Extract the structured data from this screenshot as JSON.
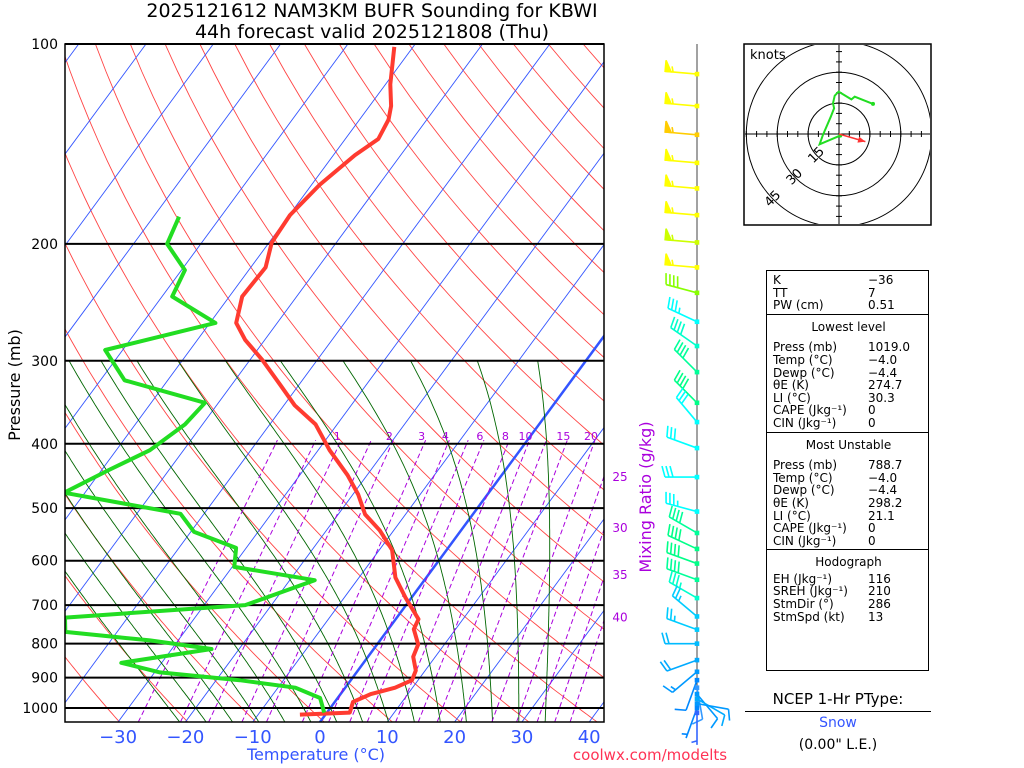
{
  "title": {
    "line1": "2025121612 NAM3KM BUFR Sounding for KBWI",
    "line2": "44h forecast valid 2025121808 (Thu)"
  },
  "colors": {
    "temperature": "#ff3b30",
    "dewpoint": "#22dd22",
    "isotherm": "#3355ff",
    "dry_adiabat": "#ff4444",
    "moist_adiabat": "#006600",
    "mixing_ratio": "#aa00dd",
    "axis_text": "#3355ff"
  },
  "chart_data": {
    "type": "line",
    "subtype": "skew-t log-p",
    "xlabel": "Temperature (°C)",
    "ylabel": "Pressure (mb)",
    "secondary_label": "Mixing Ratio (g/kg)",
    "ylim": [
      1050,
      100
    ],
    "x_ticks": [
      -30,
      -20,
      -10,
      0,
      10,
      20,
      30,
      40
    ],
    "y_ticks": [
      100,
      200,
      300,
      400,
      500,
      600,
      700,
      800,
      900,
      1000
    ],
    "mixing_ratio_labels_top": [
      1,
      2,
      3,
      4,
      6,
      8,
      10,
      15,
      20
    ],
    "mixing_ratio_labels_right": [
      25,
      30,
      35,
      40
    ],
    "series": [
      {
        "name": "Temperature",
        "points": [
          [
            1023,
            -3.8
          ],
          [
            1016,
            3.4
          ],
          [
            979,
            2.7
          ],
          [
            953,
            4.5
          ],
          [
            932,
            7.4
          ],
          [
            908,
            9.1
          ],
          [
            878,
            8.6
          ],
          [
            837,
            6.7
          ],
          [
            802,
            6.1
          ],
          [
            761,
            3.8
          ],
          [
            735,
            3.4
          ],
          [
            682,
            -0.9
          ],
          [
            636,
            -4.6
          ],
          [
            578,
            -8.1
          ],
          [
            540,
            -12.1
          ],
          [
            511,
            -16.0
          ],
          [
            477,
            -19.2
          ],
          [
            446,
            -22.9
          ],
          [
            409,
            -28.3
          ],
          [
            374,
            -33.2
          ],
          [
            350,
            -38.4
          ],
          [
            326,
            -42.8
          ],
          [
            299,
            -48.2
          ],
          [
            279,
            -52.9
          ],
          [
            263,
            -56.1
          ],
          [
            240,
            -58.1
          ],
          [
            217,
            -57.8
          ],
          [
            199,
            -59.6
          ],
          [
            181,
            -59.9
          ],
          [
            163,
            -58.8
          ],
          [
            147,
            -56.8
          ],
          [
            139,
            -55.1
          ],
          [
            130,
            -55.7
          ],
          [
            124,
            -56.8
          ],
          [
            115,
            -59.3
          ],
          [
            101,
            -62.8
          ]
        ]
      },
      {
        "name": "Dewpoint",
        "points": [
          [
            1016,
            -0.4
          ],
          [
            966,
            -2.6
          ],
          [
            932,
            -7.4
          ],
          [
            908,
            -16.5
          ],
          [
            884,
            -29.2
          ],
          [
            855,
            -36.0
          ],
          [
            815,
            -24.1
          ],
          [
            791,
            -34.2
          ],
          [
            768,
            -47.7
          ],
          [
            731,
            -49.3
          ],
          [
            700,
            -23.9
          ],
          [
            642,
            -16.3
          ],
          [
            613,
            -29.7
          ],
          [
            574,
            -31.5
          ],
          [
            543,
            -39.5
          ],
          [
            510,
            -43.5
          ],
          [
            474,
            -63.1
          ],
          [
            438,
            -58.9
          ],
          [
            409,
            -55.0
          ],
          [
            374,
            -52.6
          ],
          [
            347,
            -52.0
          ],
          [
            321,
            -66.4
          ],
          [
            289,
            -72.6
          ],
          [
            263,
            -59.2
          ],
          [
            240,
            -68.5
          ],
          [
            219,
            -69.5
          ],
          [
            200,
            -75.0
          ],
          [
            182,
            -76.2
          ]
        ]
      }
    ],
    "wind_barbs": [
      [
        111,
        275,
        55,
        "#ffff00"
      ],
      [
        124,
        275,
        55,
        "#ffff00"
      ],
      [
        137,
        275,
        55,
        "#ffcc00"
      ],
      [
        151,
        275,
        55,
        "#ffff00"
      ],
      [
        165,
        275,
        55,
        "#ffff00"
      ],
      [
        181,
        275,
        55,
        "#ffff00"
      ],
      [
        199,
        275,
        55,
        "#ccff00"
      ],
      [
        217,
        275,
        55,
        "#ffff00"
      ],
      [
        237,
        285,
        40,
        "#88ff00"
      ],
      [
        262,
        295,
        35,
        "#00ffff"
      ],
      [
        285,
        305,
        40,
        "#00ffcc"
      ],
      [
        312,
        315,
        40,
        "#00ff99"
      ],
      [
        347,
        315,
        40,
        "#00ff88"
      ],
      [
        371,
        320,
        30,
        "#00ffff"
      ],
      [
        406,
        290,
        30,
        "#00ffff"
      ],
      [
        449,
        270,
        30,
        "#00ffff"
      ],
      [
        506,
        285,
        35,
        "#00ffff"
      ],
      [
        545,
        300,
        40,
        "#00ff99"
      ],
      [
        576,
        295,
        40,
        "#00ff88"
      ],
      [
        606,
        290,
        40,
        "#00ff88"
      ],
      [
        641,
        290,
        40,
        "#00ff99"
      ],
      [
        683,
        300,
        35,
        "#00ffcc"
      ],
      [
        728,
        310,
        25,
        "#00ccff"
      ],
      [
        762,
        290,
        25,
        "#00ccff"
      ],
      [
        800,
        270,
        20,
        "#00bbff"
      ],
      [
        847,
        250,
        20,
        "#00aaff"
      ],
      [
        882,
        230,
        15,
        "#0099ff"
      ],
      [
        908,
        200,
        10,
        "#0088ff"
      ],
      [
        932,
        170,
        10,
        "#3399ff"
      ],
      [
        953,
        140,
        10,
        "#0099ff"
      ],
      [
        969,
        120,
        10,
        "#00aaff"
      ],
      [
        985,
        100,
        10,
        "#0099ff"
      ],
      [
        1000,
        200,
        5,
        "#0088ff"
      ],
      [
        1017,
        180,
        5,
        "#3366ff"
      ]
    ]
  },
  "hodograph": {
    "units_label": "knots",
    "ring_labels": [
      "15",
      "30",
      "45"
    ],
    "rings_kt": [
      15,
      30,
      45
    ],
    "trace_uv_kt": [
      [
        0.6,
        -0.8
      ],
      [
        -9.4,
        -5.0
      ],
      [
        -7.8,
        -0.5
      ],
      [
        -4.0,
        8.4
      ],
      [
        -2.4,
        12.5
      ],
      [
        -2.9,
        14.9
      ],
      [
        -2.1,
        18.6
      ],
      [
        -0.2,
        20.6
      ],
      [
        6.0,
        16.8
      ],
      [
        7.6,
        18.1
      ],
      [
        16.5,
        14.6
      ]
    ],
    "storm_motion_uv_kt": [
      12.8,
      -3.7
    ]
  },
  "stats": {
    "indices": [
      {
        "label": "K",
        "value": "−36"
      },
      {
        "label": "TT",
        "value": "7"
      },
      {
        "label": "PW (cm)",
        "value": "0.51"
      }
    ],
    "lowest": {
      "heading": "Lowest level",
      "rows": [
        {
          "label": "Press (mb)",
          "value": "1019.0"
        },
        {
          "label": "Temp (°C)",
          "value": "−4.0"
        },
        {
          "label": "Dewp (°C)",
          "value": "−4.4"
        },
        {
          "label": "θE (K)",
          "value": "274.7"
        },
        {
          "label": "LI (°C)",
          "value": "30.3"
        },
        {
          "label": "CAPE (Jkg⁻¹)",
          "value": "0"
        },
        {
          "label": "CIN (Jkg⁻¹)",
          "value": "0"
        }
      ]
    },
    "unstable": {
      "heading": "Most Unstable",
      "rows": [
        {
          "label": "Press (mb)",
          "value": "788.7"
        },
        {
          "label": "Temp (°C)",
          "value": "−4.0"
        },
        {
          "label": "Dewp (°C)",
          "value": "−4.4"
        },
        {
          "label": "θE (K)",
          "value": "298.2"
        },
        {
          "label": "LI (°C)",
          "value": "21.1"
        },
        {
          "label": "CAPE (Jkg⁻¹)",
          "value": "0"
        },
        {
          "label": "CIN (Jkg⁻¹)",
          "value": "0"
        }
      ]
    },
    "hodo": {
      "heading": "Hodograph",
      "rows": [
        {
          "label": "EH (Jkg⁻¹)",
          "value": "116"
        },
        {
          "label": "SREH (Jkg⁻¹)",
          "value": "210"
        },
        {
          "label": "StmDir (°)",
          "value": "286"
        },
        {
          "label": "StmSpd (kt)",
          "value": "13"
        }
      ]
    }
  },
  "ptype": {
    "heading": "NCEP 1-Hr PType:",
    "value": "Snow",
    "liquid_equiv": "(0.00\" L.E.)"
  },
  "credit": "coolwx.com/modelts"
}
